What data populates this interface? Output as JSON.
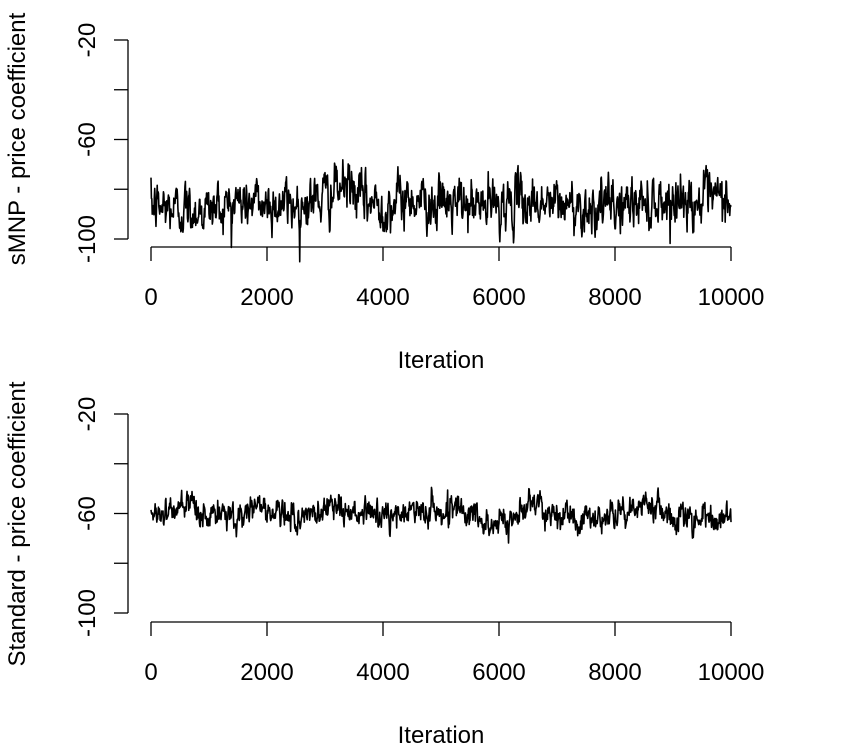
{
  "chart_data": [
    {
      "type": "line",
      "title": "",
      "xlabel": "Iteration",
      "ylabel": "sMNP - price coefficient",
      "xlim": [
        0,
        10000
      ],
      "ylim": [
        -100,
        -20
      ],
      "x_ticks": [
        0,
        2000,
        4000,
        6000,
        8000,
        10000
      ],
      "y_ticks": [
        -100,
        -60,
        -20
      ],
      "y_minor_ticks": [
        -80,
        -40
      ],
      "grid": false,
      "series": [
        {
          "x": [
            0,
            500,
            1000,
            1500,
            2000,
            2500,
            3000,
            3400,
            3600,
            4000,
            4500,
            5000,
            5500,
            6000,
            6500,
            7000,
            7500,
            8000,
            8500,
            9000,
            9500,
            10000
          ],
          "values": [
            -87,
            -88,
            -88,
            -85,
            -86,
            -86,
            -83,
            -78,
            -84,
            -87,
            -83,
            -86,
            -87,
            -86,
            -85,
            -86,
            -87,
            -87,
            -85,
            -84,
            -85,
            -84
          ]
        }
      ]
    },
    {
      "type": "line",
      "title": "",
      "xlabel": "Iteration",
      "ylabel": "Standard - price coefficient",
      "xlim": [
        0,
        10000
      ],
      "ylim": [
        -100,
        -20
      ],
      "x_ticks": [
        0,
        2000,
        4000,
        6000,
        8000,
        10000
      ],
      "y_ticks": [
        -100,
        -60,
        -20
      ],
      "y_minor_ticks": [
        -80,
        -40
      ],
      "grid": false,
      "series": [
        {
          "x": [
            0,
            500,
            1000,
            1500,
            1900,
            2200,
            2600,
            3000,
            3100,
            3400,
            3800,
            4200,
            4600,
            5000,
            5300,
            5600,
            6000,
            6300,
            6600,
            7000,
            7400,
            7800,
            8200,
            8700,
            9000,
            9400,
            9800,
            10000
          ],
          "values": [
            -60,
            -58,
            -61,
            -61,
            -56,
            -61,
            -62,
            -59,
            -54,
            -61,
            -60,
            -62,
            -58,
            -60,
            -56,
            -62,
            -65,
            -61,
            -55,
            -60,
            -62,
            -62,
            -59,
            -55,
            -61,
            -62,
            -62,
            -62
          ]
        }
      ]
    }
  ]
}
